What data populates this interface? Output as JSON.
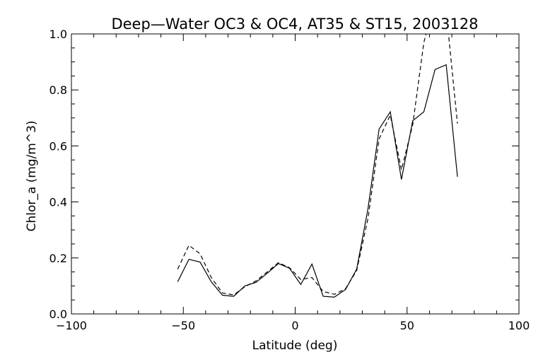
{
  "chart_data": {
    "type": "line",
    "title": "Deep—Water OC3 & OC4, AT35 & ST15, 2003128",
    "xlabel": "Latitude (deg)",
    "ylabel": "Chlor_a (mg/m^3)",
    "xlim": [
      -100,
      100
    ],
    "ylim": [
      0.0,
      1.0
    ],
    "xticks": [
      "−100",
      "−50",
      "0",
      "50",
      "100"
    ],
    "xtick_values": [
      -100,
      -50,
      0,
      50,
      100
    ],
    "yticks": [
      "0.0",
      "0.2",
      "0.4",
      "0.6",
      "0.8",
      "1.0"
    ],
    "ytick_values": [
      0.0,
      0.2,
      0.4,
      0.6,
      0.8,
      1.0
    ],
    "grid": false,
    "series": [
      {
        "style": "solid",
        "x": [
          -52.5,
          -47.5,
          -42.5,
          -37.5,
          -32.5,
          -27.5,
          -22.5,
          -17.5,
          -12.5,
          -7.5,
          -2.5,
          2.5,
          7.5,
          12.5,
          17.5,
          22.5,
          27.5,
          32.5,
          37.5,
          42.5,
          47.5,
          52.5,
          57.5,
          62.5,
          67.5,
          72.5
        ],
        "y": [
          0.115,
          0.195,
          0.185,
          0.115,
          0.067,
          0.063,
          0.1,
          0.113,
          0.145,
          0.18,
          0.163,
          0.105,
          0.178,
          0.063,
          0.06,
          0.087,
          0.16,
          0.375,
          0.66,
          0.722,
          0.48,
          0.69,
          0.722,
          0.873,
          0.89,
          0.49
        ]
      },
      {
        "style": "dashed",
        "x": [
          -52.5,
          -47.5,
          -42.5,
          -37.5,
          -32.5,
          -27.5,
          -22.5,
          -17.5,
          -12.5,
          -7.5,
          -2.5,
          2.5,
          7.5,
          12.5,
          17.5,
          22.5,
          27.5,
          32.5,
          37.5,
          42.5,
          47.5,
          52.5,
          57.5,
          62.5,
          67.5,
          72.5
        ],
        "y": [
          0.16,
          0.245,
          0.215,
          0.13,
          0.075,
          0.068,
          0.097,
          0.118,
          0.15,
          0.183,
          0.165,
          0.123,
          0.13,
          0.08,
          0.07,
          0.09,
          0.155,
          0.34,
          0.625,
          0.71,
          0.515,
          0.675,
          0.97,
          1.12,
          1.08,
          0.68
        ]
      }
    ]
  }
}
